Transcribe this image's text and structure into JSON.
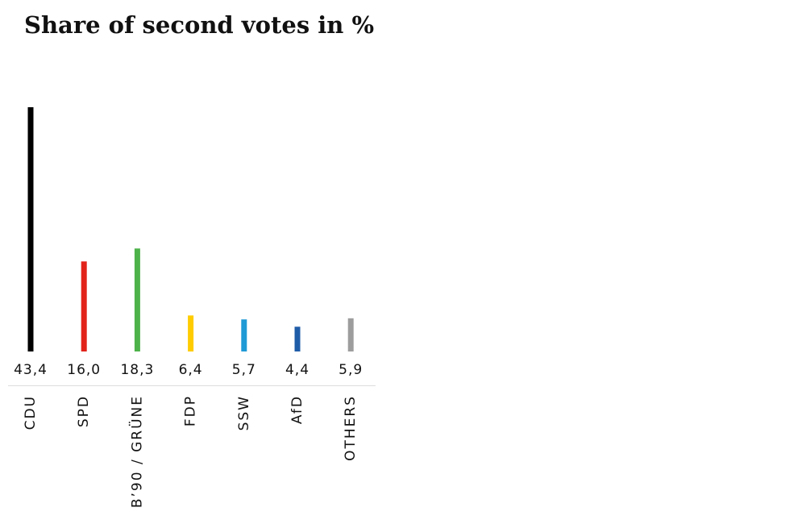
{
  "chart_data": {
    "type": "bar",
    "title": "Share of second votes in %",
    "categories": [
      "CDU",
      "SPD",
      "B’90 / GRÜNE",
      "FDP",
      "SSW",
      "AfD",
      "OTHERS"
    ],
    "values": [
      43.4,
      16.0,
      18.3,
      6.4,
      5.7,
      4.4,
      5.9
    ],
    "value_labels": [
      "43,4",
      "16,0",
      "18,3",
      "6,4",
      "5,7",
      "4,4",
      "5,9"
    ],
    "colors": [
      "#000000",
      "#e2231a",
      "#4db24a",
      "#ffcc00",
      "#1f9ad6",
      "#1f5ca8",
      "#9d9d9d"
    ]
  }
}
